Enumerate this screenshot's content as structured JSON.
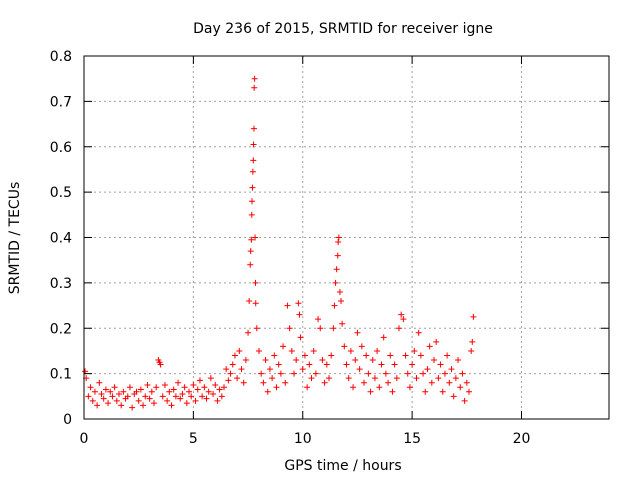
{
  "chart_data": {
    "type": "scatter",
    "title": "Day 236 of 2015, SRMTID for receiver igne",
    "xlabel": "GPS time / hours",
    "ylabel": "SRMTID / TECUs",
    "xlim": [
      0,
      24
    ],
    "ylim": [
      0,
      0.8
    ],
    "xticks": [
      0,
      5,
      10,
      15,
      20
    ],
    "xtick_labels": [
      "0",
      "5",
      "10",
      "15",
      "20"
    ],
    "yticks": [
      0,
      0.1,
      0.2,
      0.3,
      0.4,
      0.5,
      0.6,
      0.7,
      0.8
    ],
    "ytick_labels": [
      "0",
      "0.1",
      "0.2",
      "0.3",
      "0.4",
      "0.5",
      "0.6",
      "0.7",
      "0.8"
    ],
    "grid": true,
    "marker": "+",
    "color": "#ff0000",
    "series": [
      {
        "name": "SRMTID",
        "points": [
          [
            0.05,
            0.105
          ],
          [
            0.1,
            0.09
          ],
          [
            0.2,
            0.05
          ],
          [
            0.3,
            0.07
          ],
          [
            0.4,
            0.04
          ],
          [
            0.5,
            0.06
          ],
          [
            0.6,
            0.03
          ],
          [
            0.7,
            0.08
          ],
          [
            0.8,
            0.055
          ],
          [
            0.9,
            0.045
          ],
          [
            1.0,
            0.065
          ],
          [
            1.1,
            0.035
          ],
          [
            1.2,
            0.06
          ],
          [
            1.3,
            0.05
          ],
          [
            1.4,
            0.07
          ],
          [
            1.5,
            0.04
          ],
          [
            1.6,
            0.055
          ],
          [
            1.7,
            0.03
          ],
          [
            1.8,
            0.06
          ],
          [
            1.9,
            0.045
          ],
          [
            2.0,
            0.05
          ],
          [
            2.1,
            0.07
          ],
          [
            2.2,
            0.025
          ],
          [
            2.3,
            0.055
          ],
          [
            2.4,
            0.06
          ],
          [
            2.5,
            0.04
          ],
          [
            2.6,
            0.065
          ],
          [
            2.7,
            0.03
          ],
          [
            2.8,
            0.05
          ],
          [
            2.9,
            0.075
          ],
          [
            3.0,
            0.045
          ],
          [
            3.1,
            0.06
          ],
          [
            3.2,
            0.035
          ],
          [
            3.3,
            0.07
          ],
          [
            3.4,
            0.13
          ],
          [
            3.45,
            0.125
          ],
          [
            3.5,
            0.12
          ],
          [
            3.6,
            0.05
          ],
          [
            3.7,
            0.075
          ],
          [
            3.8,
            0.04
          ],
          [
            3.9,
            0.06
          ],
          [
            4.0,
            0.03
          ],
          [
            4.1,
            0.065
          ],
          [
            4.2,
            0.05
          ],
          [
            4.3,
            0.08
          ],
          [
            4.4,
            0.045
          ],
          [
            4.5,
            0.055
          ],
          [
            4.6,
            0.07
          ],
          [
            4.7,
            0.035
          ],
          [
            4.8,
            0.06
          ],
          [
            4.9,
            0.05
          ],
          [
            5.0,
            0.075
          ],
          [
            5.1,
            0.04
          ],
          [
            5.2,
            0.065
          ],
          [
            5.3,
            0.085
          ],
          [
            5.4,
            0.05
          ],
          [
            5.5,
            0.07
          ],
          [
            5.6,
            0.045
          ],
          [
            5.7,
            0.06
          ],
          [
            5.8,
            0.09
          ],
          [
            5.9,
            0.055
          ],
          [
            6.0,
            0.075
          ],
          [
            6.1,
            0.04
          ],
          [
            6.2,
            0.065
          ],
          [
            6.3,
            0.05
          ],
          [
            6.4,
            0.07
          ],
          [
            6.5,
            0.11
          ],
          [
            6.6,
            0.085
          ],
          [
            6.7,
            0.1
          ],
          [
            6.8,
            0.12
          ],
          [
            6.9,
            0.14
          ],
          [
            7.0,
            0.09
          ],
          [
            7.1,
            0.15
          ],
          [
            7.2,
            0.11
          ],
          [
            7.3,
            0.08
          ],
          [
            7.4,
            0.13
          ],
          [
            7.5,
            0.19
          ],
          [
            7.55,
            0.26
          ],
          [
            7.6,
            0.34
          ],
          [
            7.62,
            0.37
          ],
          [
            7.65,
            0.395
          ],
          [
            7.67,
            0.45
          ],
          [
            7.68,
            0.48
          ],
          [
            7.7,
            0.51
          ],
          [
            7.72,
            0.545
          ],
          [
            7.74,
            0.57
          ],
          [
            7.75,
            0.605
          ],
          [
            7.77,
            0.64
          ],
          [
            7.78,
            0.73
          ],
          [
            7.8,
            0.75
          ],
          [
            7.82,
            0.4
          ],
          [
            7.84,
            0.3
          ],
          [
            7.85,
            0.255
          ],
          [
            7.9,
            0.2
          ],
          [
            8.0,
            0.15
          ],
          [
            8.1,
            0.1
          ],
          [
            8.2,
            0.08
          ],
          [
            8.3,
            0.13
          ],
          [
            8.4,
            0.06
          ],
          [
            8.5,
            0.11
          ],
          [
            8.6,
            0.09
          ],
          [
            8.7,
            0.14
          ],
          [
            8.8,
            0.07
          ],
          [
            8.9,
            0.12
          ],
          [
            9.0,
            0.1
          ],
          [
            9.1,
            0.16
          ],
          [
            9.2,
            0.08
          ],
          [
            9.3,
            0.25
          ],
          [
            9.4,
            0.2
          ],
          [
            9.5,
            0.15
          ],
          [
            9.6,
            0.1
          ],
          [
            9.7,
            0.13
          ],
          [
            9.8,
            0.255
          ],
          [
            9.85,
            0.23
          ],
          [
            9.9,
            0.18
          ],
          [
            10.0,
            0.11
          ],
          [
            10.1,
            0.14
          ],
          [
            10.2,
            0.07
          ],
          [
            10.3,
            0.12
          ],
          [
            10.4,
            0.09
          ],
          [
            10.5,
            0.15
          ],
          [
            10.6,
            0.1
          ],
          [
            10.7,
            0.22
          ],
          [
            10.8,
            0.2
          ],
          [
            10.9,
            0.13
          ],
          [
            11.0,
            0.08
          ],
          [
            11.1,
            0.12
          ],
          [
            11.2,
            0.09
          ],
          [
            11.3,
            0.14
          ],
          [
            11.4,
            0.2
          ],
          [
            11.45,
            0.25
          ],
          [
            11.5,
            0.3
          ],
          [
            11.55,
            0.33
          ],
          [
            11.6,
            0.36
          ],
          [
            11.62,
            0.39
          ],
          [
            11.65,
            0.4
          ],
          [
            11.7,
            0.28
          ],
          [
            11.75,
            0.26
          ],
          [
            11.8,
            0.21
          ],
          [
            11.9,
            0.16
          ],
          [
            12.0,
            0.12
          ],
          [
            12.1,
            0.09
          ],
          [
            12.2,
            0.15
          ],
          [
            12.3,
            0.07
          ],
          [
            12.4,
            0.13
          ],
          [
            12.5,
            0.19
          ],
          [
            12.6,
            0.11
          ],
          [
            12.7,
            0.16
          ],
          [
            12.8,
            0.08
          ],
          [
            12.9,
            0.14
          ],
          [
            13.0,
            0.1
          ],
          [
            13.1,
            0.06
          ],
          [
            13.2,
            0.13
          ],
          [
            13.3,
            0.09
          ],
          [
            13.4,
            0.15
          ],
          [
            13.5,
            0.07
          ],
          [
            13.6,
            0.12
          ],
          [
            13.7,
            0.18
          ],
          [
            13.8,
            0.1
          ],
          [
            13.9,
            0.08
          ],
          [
            14.0,
            0.14
          ],
          [
            14.1,
            0.06
          ],
          [
            14.2,
            0.12
          ],
          [
            14.3,
            0.09
          ],
          [
            14.4,
            0.2
          ],
          [
            14.5,
            0.23
          ],
          [
            14.6,
            0.22
          ],
          [
            14.7,
            0.14
          ],
          [
            14.8,
            0.1
          ],
          [
            14.9,
            0.07
          ],
          [
            15.0,
            0.12
          ],
          [
            15.1,
            0.15
          ],
          [
            15.2,
            0.09
          ],
          [
            15.3,
            0.19
          ],
          [
            15.4,
            0.14
          ],
          [
            15.5,
            0.1
          ],
          [
            15.6,
            0.06
          ],
          [
            15.7,
            0.11
          ],
          [
            15.8,
            0.16
          ],
          [
            15.9,
            0.08
          ],
          [
            16.0,
            0.13
          ],
          [
            16.1,
            0.17
          ],
          [
            16.2,
            0.09
          ],
          [
            16.3,
            0.12
          ],
          [
            16.4,
            0.06
          ],
          [
            16.5,
            0.1
          ],
          [
            16.6,
            0.14
          ],
          [
            16.7,
            0.08
          ],
          [
            16.8,
            0.11
          ],
          [
            16.9,
            0.05
          ],
          [
            17.0,
            0.09
          ],
          [
            17.1,
            0.13
          ],
          [
            17.2,
            0.07
          ],
          [
            17.3,
            0.1
          ],
          [
            17.4,
            0.04
          ],
          [
            17.5,
            0.08
          ],
          [
            17.6,
            0.06
          ],
          [
            17.7,
            0.15
          ],
          [
            17.75,
            0.17
          ],
          [
            17.8,
            0.225
          ]
        ]
      }
    ]
  }
}
